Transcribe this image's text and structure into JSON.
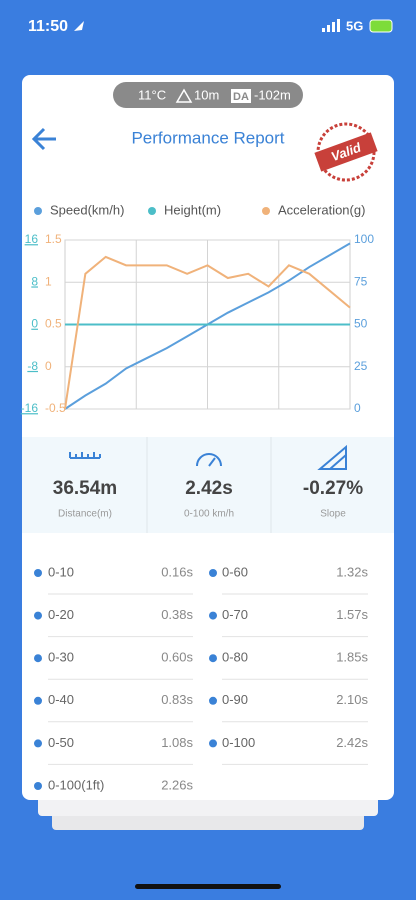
{
  "status_bar": {
    "time": "11:50",
    "network": "5G"
  },
  "conditions": {
    "temperature": "11°C",
    "altitude": "10m",
    "da_badge": "DA",
    "density_altitude": "-102m"
  },
  "header": {
    "title": "Performance Report",
    "stamp": "Valid"
  },
  "chart_data": {
    "type": "line",
    "categories": [
      null,
      null,
      null,
      null,
      null,
      null,
      null,
      null,
      null,
      null,
      null,
      null,
      null,
      null,
      null
    ],
    "series": [
      {
        "name": "Speed(km/h)",
        "color": "#5b9fdc",
        "axis": "y2",
        "values": [
          0,
          8,
          15,
          24,
          30,
          36,
          43,
          50,
          57,
          63,
          69,
          76,
          84,
          91,
          98
        ]
      },
      {
        "name": "Height(m)",
        "color": "#4cbec8",
        "axis": "y",
        "values": [
          0,
          0,
          0,
          0,
          0,
          0,
          0,
          0,
          0,
          0,
          0,
          0,
          0,
          0,
          0
        ]
      },
      {
        "name": "Acceleration(g)",
        "color": "#f0b27a",
        "axis": "y3",
        "values": [
          -0.5,
          1.1,
          1.3,
          1.2,
          1.2,
          1.2,
          1.1,
          1.2,
          1.05,
          1.1,
          0.95,
          1.2,
          1.1,
          0.9,
          0.7
        ]
      }
    ],
    "ylim": [
      -16,
      16
    ],
    "yticks": [
      16,
      8,
      0,
      -8,
      -16
    ],
    "y2lim": [
      0,
      100
    ],
    "y2ticks": [
      100,
      75,
      50,
      25,
      0
    ],
    "y3lim": [
      -0.5,
      1.5
    ],
    "y3ticks": [
      1.5,
      1,
      0.5,
      0,
      -0.5
    ],
    "grid": true
  },
  "stats": [
    {
      "value": "36.54m",
      "label": "Distance(m)"
    },
    {
      "value": "2.42s",
      "label": "0-100 km/h"
    },
    {
      "value": "-0.27%",
      "label": "Slope"
    }
  ],
  "table": {
    "rows": [
      [
        [
          "0-10",
          "0.16s"
        ],
        [
          "0-60",
          "1.32s"
        ]
      ],
      [
        [
          "0-20",
          "0.38s"
        ],
        [
          "0-70",
          "1.57s"
        ]
      ],
      [
        [
          "0-30",
          "0.60s"
        ],
        [
          "0-80",
          "1.85s"
        ]
      ],
      [
        [
          "0-40",
          "0.83s"
        ],
        [
          "0-90",
          "2.10s"
        ]
      ],
      [
        [
          "0-50",
          "1.08s"
        ],
        [
          "0-100",
          "2.42s"
        ]
      ],
      [
        [
          "0-100(1ft)",
          "2.26s"
        ]
      ]
    ]
  }
}
